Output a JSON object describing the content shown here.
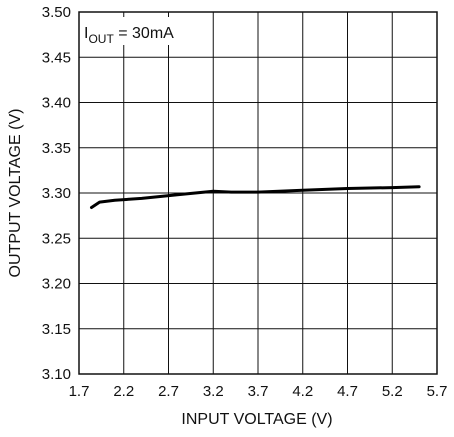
{
  "chart_data": {
    "type": "line",
    "title": "",
    "xlabel": "INPUT VOLTAGE (V)",
    "ylabel": "OUTPUT VOLTAGE (V)",
    "xlim": [
      1.7,
      5.7
    ],
    "ylim": [
      3.1,
      3.5
    ],
    "xticks": [
      "1.7",
      "2.2",
      "2.7",
      "3.2",
      "3.7",
      "4.2",
      "4.7",
      "5.2",
      "5.7"
    ],
    "yticks": [
      "3.50",
      "3.45",
      "3.40",
      "3.35",
      "3.30",
      "3.25",
      "3.20",
      "3.15",
      "3.10"
    ],
    "grid": true,
    "annotation": {
      "main": "I",
      "sub": "OUT",
      "rest": " = 30mA"
    },
    "series": [
      {
        "x": [
          1.84,
          1.93,
          2.1,
          2.4,
          2.8,
          3.2,
          3.4,
          3.7,
          4.2,
          4.7,
          5.2,
          5.5
        ],
        "y": [
          3.284,
          3.29,
          3.292,
          3.294,
          3.298,
          3.302,
          3.301,
          3.301,
          3.303,
          3.305,
          3.306,
          3.307
        ]
      }
    ]
  }
}
